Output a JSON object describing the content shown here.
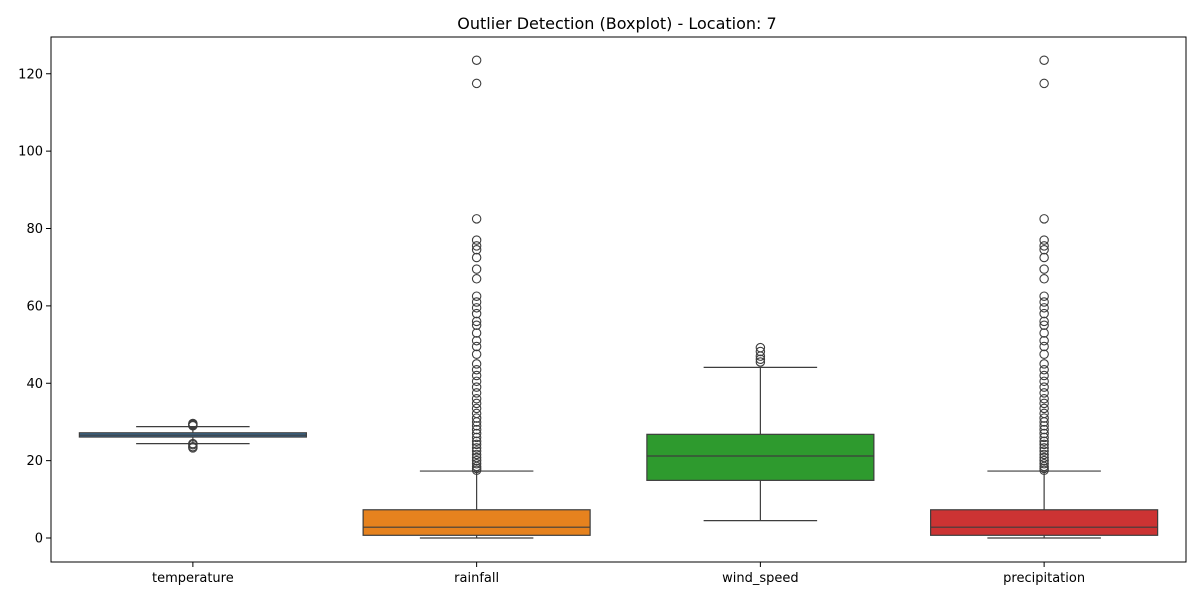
{
  "chart_data": {
    "type": "boxplot",
    "title": "Outlier Detection (Boxplot) - Location: 7",
    "xlabel": "",
    "ylabel": "",
    "ylim": [
      -6.2,
      129.5
    ],
    "yticks": [
      0,
      20,
      40,
      60,
      80,
      100,
      120
    ],
    "grid": false,
    "legend": false,
    "categories": [
      "temperature",
      "rainfall",
      "wind_speed",
      "precipitation"
    ],
    "series": [
      {
        "category": "temperature",
        "color": "#3a6f9b",
        "min": 24.4,
        "q1": 26.1,
        "median": 26.6,
        "q3": 27.2,
        "max": 28.8,
        "outliers": [
          29.0,
          29.2,
          29.4,
          29.6,
          23.3,
          23.6,
          24.1,
          24.4
        ]
      },
      {
        "category": "rainfall",
        "color": "#e6821e",
        "min": 0.0,
        "q1": 0.7,
        "median": 2.8,
        "q3": 7.3,
        "max": 17.3,
        "outliers": [
          17.5,
          18.0,
          18.5,
          19.2,
          20.0,
          20.8,
          21.6,
          22.5,
          23.3,
          24.2,
          25.0,
          26.0,
          27.0,
          28.0,
          29.0,
          30.0,
          31.0,
          32.2,
          33.5,
          34.8,
          36.0,
          37.5,
          39.0,
          40.5,
          42.0,
          43.5,
          45.0,
          47.5,
          49.5,
          51.0,
          53.0,
          55.0,
          56.0,
          58.0,
          59.5,
          61.0,
          62.5,
          67.0,
          69.5,
          72.5,
          74.5,
          75.5,
          77.0,
          82.5,
          117.5,
          123.5
        ]
      },
      {
        "category": "wind_speed",
        "color": "#2e9a2e",
        "min": 4.5,
        "q1": 14.9,
        "median": 21.2,
        "q3": 26.8,
        "max": 44.1,
        "outliers": [
          45.5,
          46.2,
          47.0,
          48.2,
          49.2
        ]
      },
      {
        "category": "precipitation",
        "color": "#cc3333",
        "min": 0.0,
        "q1": 0.7,
        "median": 2.8,
        "q3": 7.3,
        "max": 17.3,
        "outliers": [
          17.5,
          18.0,
          18.5,
          19.2,
          20.0,
          20.8,
          21.6,
          22.5,
          23.3,
          24.2,
          25.0,
          26.0,
          27.0,
          28.0,
          29.0,
          30.0,
          31.0,
          32.2,
          33.5,
          34.8,
          36.0,
          37.5,
          39.0,
          40.5,
          42.0,
          43.5,
          45.0,
          47.5,
          49.5,
          51.0,
          53.0,
          55.0,
          56.0,
          58.0,
          59.5,
          61.0,
          62.5,
          67.0,
          69.5,
          72.5,
          74.5,
          75.5,
          77.0,
          82.5,
          117.5,
          123.5
        ]
      }
    ]
  }
}
